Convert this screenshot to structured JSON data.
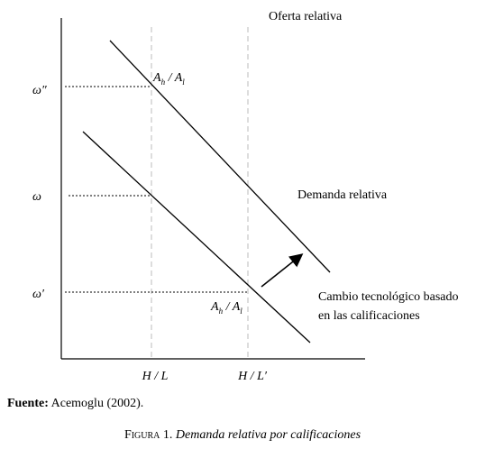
{
  "diagram": {
    "supply_label": "Oferta relativa",
    "demand_label": "Demanda relativa",
    "y_labels": [
      "ω″",
      "ω",
      "ω′"
    ],
    "x_labels": [
      "H / L",
      "H / L′"
    ],
    "ratio_upper": {
      "a": "A",
      "a_sub": "h",
      "sep": " / ",
      "b": "A",
      "b_sub": "l"
    },
    "ratio_lower": {
      "a": "A",
      "a_sub": "h",
      "sep": " / ",
      "b": "A",
      "b_sub": "l"
    },
    "shift_label": [
      "Cambio tecnológico basado",
      "en las calificaciones"
    ]
  },
  "source": {
    "prefix": "Fuente:",
    "text": "Acemoglu (2002)."
  },
  "caption": {
    "number": "Figura 1.",
    "text": "Demanda relativa por calificaciones"
  }
}
